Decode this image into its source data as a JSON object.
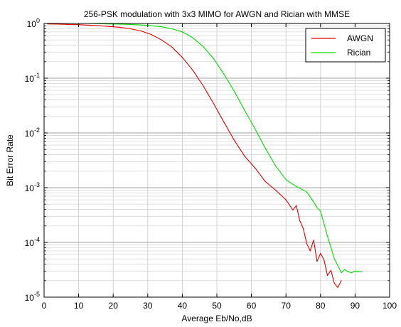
{
  "chart_data": {
    "type": "line",
    "title": "256-PSK modulation with 3x3 MIMO for AWGN and Rician with MMSE",
    "xlabel": "Average Eb/No,dB",
    "ylabel": "Bit Error Rate",
    "xlim": [
      0,
      100
    ],
    "ylim": [
      1e-05,
      1
    ],
    "yscale": "log",
    "xticks": [
      "0",
      "10",
      "20",
      "30",
      "40",
      "50",
      "60",
      "70",
      "80",
      "90",
      "100"
    ],
    "yticks": [
      {
        "value": 1,
        "base": "10",
        "exp": "0"
      },
      {
        "value": 0.1,
        "base": "10",
        "exp": "-1"
      },
      {
        "value": 0.01,
        "base": "10",
        "exp": "-2"
      },
      {
        "value": 0.001,
        "base": "10",
        "exp": "-3"
      },
      {
        "value": 0.0001,
        "base": "10",
        "exp": "-4"
      },
      {
        "value": 1e-05,
        "base": "10",
        "exp": "-5"
      }
    ],
    "grid": true,
    "legend_position": "top-right",
    "series": [
      {
        "name": "AWGN",
        "color": "#e00000",
        "x": [
          1,
          4,
          7,
          10,
          13,
          16,
          19,
          22,
          25,
          28,
          31,
          34,
          37,
          40,
          43,
          46,
          49,
          52,
          55,
          58,
          61,
          64,
          67,
          70,
          72,
          73,
          74,
          75,
          76,
          77,
          78,
          79,
          80,
          81,
          82,
          83,
          84,
          85,
          86
        ],
        "y": [
          0.98,
          0.97,
          0.96,
          0.95,
          0.93,
          0.91,
          0.88,
          0.85,
          0.8,
          0.73,
          0.63,
          0.5,
          0.37,
          0.24,
          0.14,
          0.073,
          0.035,
          0.016,
          0.0074,
          0.0038,
          0.0023,
          0.0013,
          0.0009,
          0.0006,
          0.00039,
          0.00047,
          0.00025,
          0.00018,
          9.5e-05,
          7e-05,
          0.00011,
          4.5e-05,
          6.3e-05,
          4.8e-05,
          2.5e-05,
          3.1e-05,
          1.8e-05,
          1.5e-05,
          2e-05
        ]
      },
      {
        "name": "Rician",
        "color": "#00dd00",
        "x": [
          1,
          4,
          7,
          10,
          13,
          16,
          19,
          22,
          25,
          28,
          31,
          34,
          37,
          40,
          43,
          46,
          49,
          52,
          55,
          58,
          61,
          64,
          67,
          70,
          73,
          76,
          78,
          79,
          80,
          81,
          82,
          83,
          84,
          85,
          86,
          87,
          88,
          89,
          90,
          91,
          92
        ],
        "y": [
          1.0,
          1.0,
          1.0,
          1.0,
          1.0,
          0.99,
          0.98,
          0.97,
          0.96,
          0.94,
          0.91,
          0.87,
          0.8,
          0.7,
          0.55,
          0.38,
          0.23,
          0.12,
          0.058,
          0.026,
          0.012,
          0.0053,
          0.0025,
          0.0014,
          0.00105,
          0.00083,
          0.00055,
          0.00043,
          0.00037,
          0.00022,
          0.00013,
          8.2e-05,
          5e-05,
          3.8e-05,
          2.8e-05,
          3.2e-05,
          2.9e-05,
          2.8e-05,
          3e-05,
          2.9e-05,
          2.9e-05
        ]
      }
    ]
  }
}
